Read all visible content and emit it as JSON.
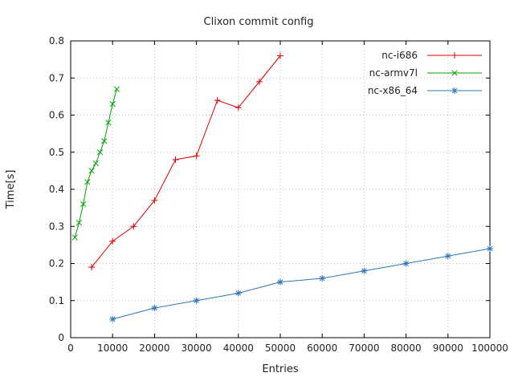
{
  "chart_data": {
    "type": "line",
    "title": "Clixon commit config",
    "xlabel": "Entries",
    "ylabel": "Time[s]",
    "xlim": [
      0,
      100000
    ],
    "ylim": [
      0,
      0.8
    ],
    "xticks": [
      0,
      10000,
      20000,
      30000,
      40000,
      50000,
      60000,
      70000,
      80000,
      90000,
      100000
    ],
    "xtick_labels": [
      "0",
      "10000",
      "20000",
      "30000",
      "40000",
      "50000",
      "60000",
      "70000",
      "80000",
      "90000",
      "100000"
    ],
    "yticks": [
      0,
      0.1,
      0.2,
      0.3,
      0.4,
      0.5,
      0.6,
      0.7,
      0.8
    ],
    "ytick_labels": [
      "0",
      "0.1",
      "0.2",
      "0.3",
      "0.4",
      "0.5",
      "0.6",
      "0.7",
      "0.8"
    ],
    "grid": true,
    "grid_color": "#c0c0c0",
    "border_color": "#000000",
    "legend_position": "top-right",
    "series": [
      {
        "name": "nc-i686",
        "color": "#dd0000",
        "marker": "plus",
        "points": [
          [
            5000,
            0.19
          ],
          [
            10000,
            0.26
          ],
          [
            15000,
            0.3
          ],
          [
            20000,
            0.37
          ],
          [
            25000,
            0.48
          ],
          [
            30000,
            0.49
          ],
          [
            35000,
            0.64
          ],
          [
            40000,
            0.62
          ],
          [
            45000,
            0.69
          ],
          [
            50000,
            0.76
          ]
        ]
      },
      {
        "name": "nc-armv7l",
        "color": "#00a000",
        "marker": "cross",
        "points": [
          [
            1000,
            0.27
          ],
          [
            2000,
            0.31
          ],
          [
            3000,
            0.36
          ],
          [
            4000,
            0.42
          ],
          [
            5000,
            0.45
          ],
          [
            6000,
            0.47
          ],
          [
            7000,
            0.5
          ],
          [
            8000,
            0.53
          ],
          [
            9000,
            0.58
          ],
          [
            10000,
            0.63
          ],
          [
            11000,
            0.67
          ]
        ]
      },
      {
        "name": "nc-x86_64",
        "color": "#2e75b6",
        "marker": "asterisk",
        "points": [
          [
            10000,
            0.05
          ],
          [
            20000,
            0.08
          ],
          [
            30000,
            0.1
          ],
          [
            40000,
            0.12
          ],
          [
            50000,
            0.15
          ],
          [
            60000,
            0.16
          ],
          [
            70000,
            0.18
          ],
          [
            80000,
            0.2
          ],
          [
            90000,
            0.22
          ],
          [
            100000,
            0.24
          ]
        ]
      }
    ]
  }
}
